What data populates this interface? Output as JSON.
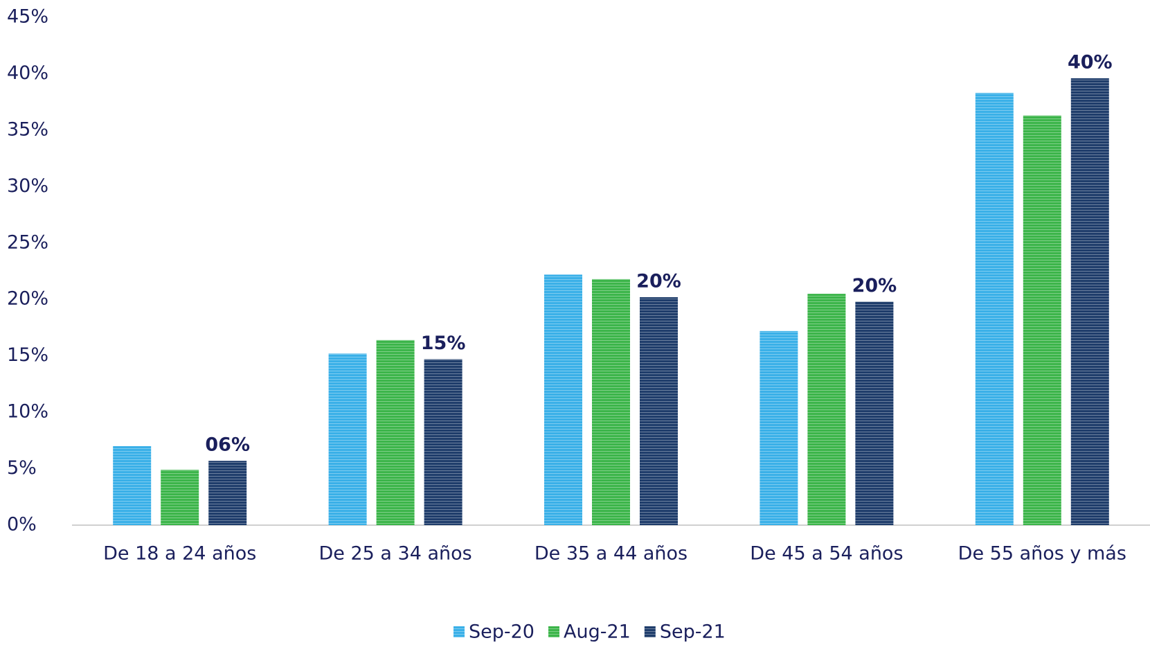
{
  "chart_data": {
    "type": "bar",
    "categories": [
      "De 18 a 24 años",
      "De 25 a 34 años",
      "De 35 a 44 años",
      "De 45 a 54 años",
      "De 55 años y más"
    ],
    "series": [
      {
        "name": "Sep-20",
        "color": "#3ab0e8",
        "values": [
          7.0,
          15.2,
          22.2,
          17.2,
          38.3
        ]
      },
      {
        "name": "Aug-21",
        "color": "#3cb54a",
        "values": [
          4.9,
          16.4,
          21.8,
          20.5,
          36.3
        ]
      },
      {
        "name": "Sep-21",
        "color": "#1f3d6b",
        "values": [
          5.7,
          14.7,
          20.2,
          19.8,
          39.6
        ],
        "value_labels": [
          "06%",
          "15%",
          "20%",
          "20%",
          "40%"
        ]
      }
    ],
    "ylim": [
      0,
      45
    ],
    "yticks": [
      {
        "value": 0,
        "label": "0%"
      },
      {
        "value": 5,
        "label": "5%"
      },
      {
        "value": 10,
        "label": "10%"
      },
      {
        "value": 15,
        "label": "15%"
      },
      {
        "value": 20,
        "label": "20%"
      },
      {
        "value": 25,
        "label": "25%"
      },
      {
        "value": 30,
        "label": "30%"
      },
      {
        "value": 35,
        "label": "35%"
      },
      {
        "value": 40,
        "label": "40%"
      },
      {
        "value": 45,
        "label": "45%"
      }
    ],
    "legend": "bottom"
  }
}
